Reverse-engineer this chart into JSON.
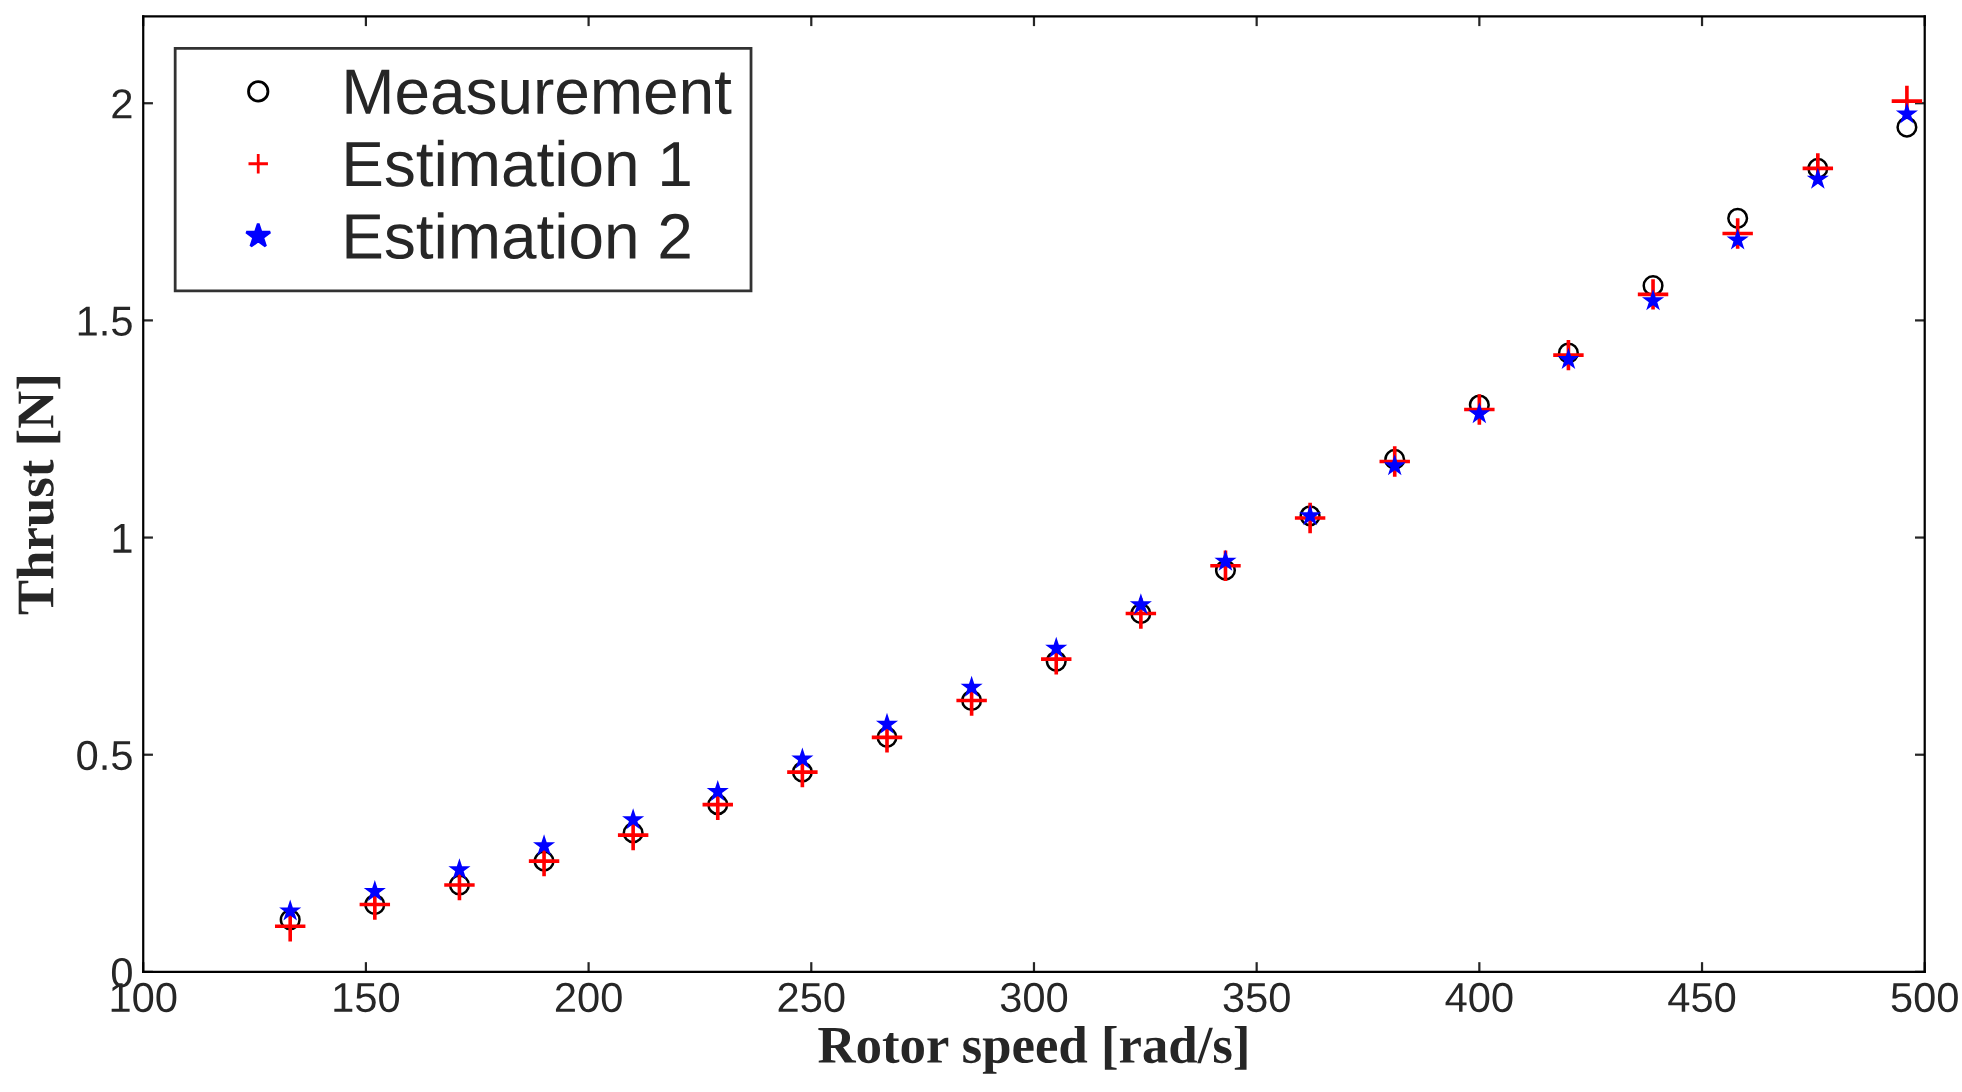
{
  "chart_data": {
    "type": "scatter",
    "xlabel": "Rotor speed [rad/s]",
    "ylabel": "Thrust [N]",
    "x": [
      133,
      152,
      171,
      190,
      210,
      229,
      248,
      267,
      286,
      305,
      324,
      343,
      362,
      381,
      400,
      420,
      439,
      458,
      476,
      496
    ],
    "series": [
      {
        "name": "Measurement",
        "color": "#000000",
        "marker": "circle",
        "values": [
          0.12,
          0.155,
          0.2,
          0.255,
          0.32,
          0.385,
          0.46,
          0.54,
          0.625,
          0.715,
          0.825,
          0.925,
          1.05,
          1.18,
          1.305,
          1.425,
          1.58,
          1.735,
          1.85,
          1.945
        ]
      },
      {
        "name": "Estimation 1",
        "color": "#ff0000",
        "marker": "cross",
        "values": [
          0.105,
          0.155,
          0.2,
          0.255,
          0.315,
          0.385,
          0.46,
          0.54,
          0.625,
          0.72,
          0.825,
          0.935,
          1.045,
          1.175,
          1.295,
          1.42,
          1.56,
          1.7,
          1.85,
          2.005
        ]
      },
      {
        "name": "Estimation 2",
        "color": "#0000ff",
        "marker": "star",
        "values": [
          0.14,
          0.185,
          0.235,
          0.29,
          0.35,
          0.415,
          0.49,
          0.57,
          0.655,
          0.745,
          0.845,
          0.945,
          1.05,
          1.165,
          1.285,
          1.41,
          1.545,
          1.685,
          1.825,
          1.975
        ]
      }
    ],
    "xlim": [
      100,
      500
    ],
    "xticks": [
      100,
      150,
      200,
      250,
      300,
      350,
      400,
      450,
      500
    ],
    "ylim": [
      0,
      2.2
    ],
    "yticks": [
      0,
      0.5,
      1,
      1.5,
      2
    ],
    "grid": false,
    "legend": "top left"
  }
}
